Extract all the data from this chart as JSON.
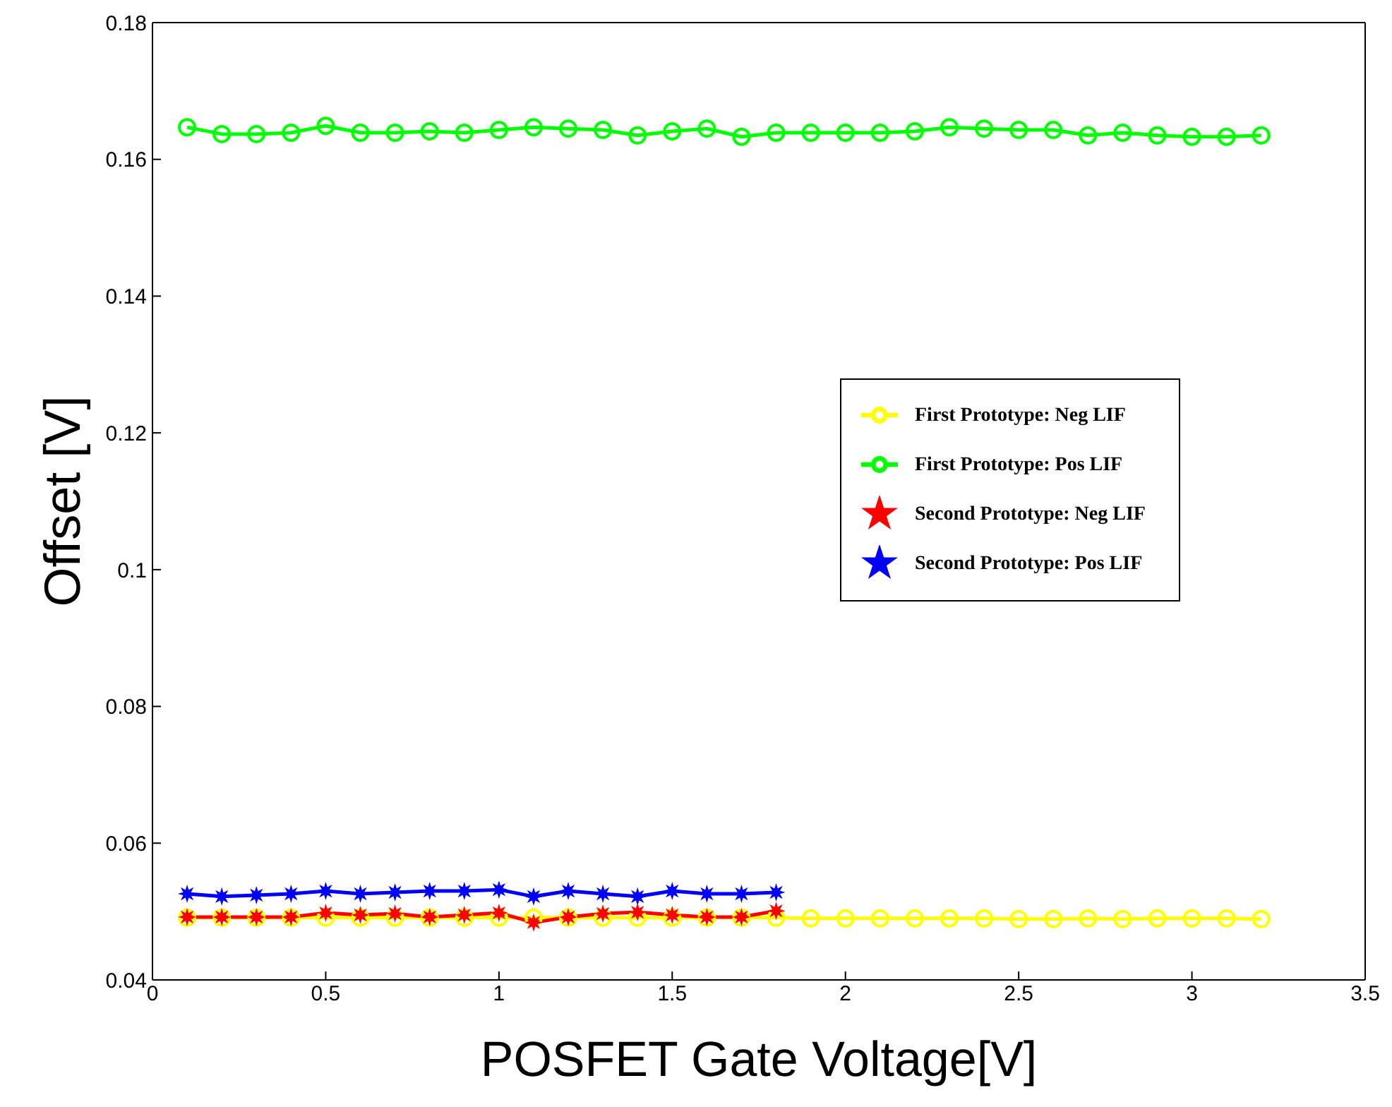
{
  "chart_data": {
    "type": "line",
    "xlabel": "POSFET Gate Voltage[V]",
    "ylabel": "Offset [V]",
    "x": [
      0.1,
      0.2,
      0.3,
      0.4,
      0.5,
      0.6,
      0.7,
      0.8,
      0.9,
      1.0,
      1.1,
      1.2,
      1.3,
      1.4,
      1.5,
      1.6,
      1.7,
      1.8,
      1.9,
      2.0,
      2.1,
      2.2,
      2.3,
      2.4,
      2.5,
      2.6,
      2.7,
      2.8,
      2.9,
      3.0,
      3.1,
      3.2
    ],
    "xlim": [
      0,
      3.5
    ],
    "xticks": [
      0,
      0.5,
      1,
      1.5,
      2,
      2.5,
      3,
      3.5
    ],
    "ylim": [
      0.04,
      0.18
    ],
    "yticks": [
      0.04,
      0.06,
      0.08,
      0.1,
      0.12,
      0.14,
      0.16,
      0.18
    ],
    "grid": false,
    "legend": "right",
    "line_style": "solid",
    "series": [
      {
        "name": "First Prototype: Pos LIF",
        "color": "#00ff00",
        "marker": "circle",
        "values": [
          0.1647,
          0.1637,
          0.1637,
          0.1639,
          0.1649,
          0.1639,
          0.1639,
          0.1641,
          0.1639,
          0.1643,
          0.1647,
          0.1645,
          0.1643,
          0.1635,
          0.1641,
          0.1645,
          0.1633,
          0.1639,
          0.1639,
          0.1639,
          0.1639,
          0.1641,
          0.1647,
          0.1645,
          0.1643,
          0.1643,
          0.1635,
          0.1639,
          0.1635,
          0.1633,
          0.1633,
          0.1635
        ]
      },
      {
        "name": "First Prototype: Neg LIF",
        "color": "#ffff00",
        "marker": "circle",
        "values": [
          0.0491,
          0.0491,
          0.0491,
          0.0491,
          0.0491,
          0.0491,
          0.0491,
          0.0491,
          0.0491,
          0.0491,
          0.0491,
          0.0491,
          0.0491,
          0.0491,
          0.0491,
          0.0491,
          0.0491,
          0.0491,
          0.049,
          0.049,
          0.049,
          0.049,
          0.049,
          0.049,
          0.0489,
          0.0489,
          0.049,
          0.0489,
          0.049,
          0.049,
          0.049,
          0.0489
        ]
      },
      {
        "name": "Second Prototype: Pos LIF",
        "color": "#0000ff",
        "marker": "star",
        "x": [
          0.1,
          0.2,
          0.3,
          0.4,
          0.5,
          0.6,
          0.7,
          0.8,
          0.9,
          1.0,
          1.1,
          1.2,
          1.3,
          1.4,
          1.5,
          1.6,
          1.7,
          1.8
        ],
        "values": [
          0.0526,
          0.0522,
          0.0524,
          0.0526,
          0.053,
          0.0526,
          0.0528,
          0.053,
          0.053,
          0.0532,
          0.0522,
          0.053,
          0.0526,
          0.0522,
          0.053,
          0.0526,
          0.0526,
          0.0528
        ]
      },
      {
        "name": "Second Prototype: Neg LIF",
        "color": "#ff0000",
        "marker": "star",
        "x": [
          0.1,
          0.2,
          0.3,
          0.4,
          0.5,
          0.6,
          0.7,
          0.8,
          0.9,
          1.0,
          1.1,
          1.2,
          1.3,
          1.4,
          1.5,
          1.6,
          1.7,
          1.8
        ],
        "values": [
          0.0492,
          0.0492,
          0.0492,
          0.0492,
          0.0498,
          0.0495,
          0.0497,
          0.0492,
          0.0495,
          0.0498,
          0.0484,
          0.0492,
          0.0497,
          0.0499,
          0.0495,
          0.0492,
          0.0492,
          0.0501
        ]
      }
    ]
  }
}
